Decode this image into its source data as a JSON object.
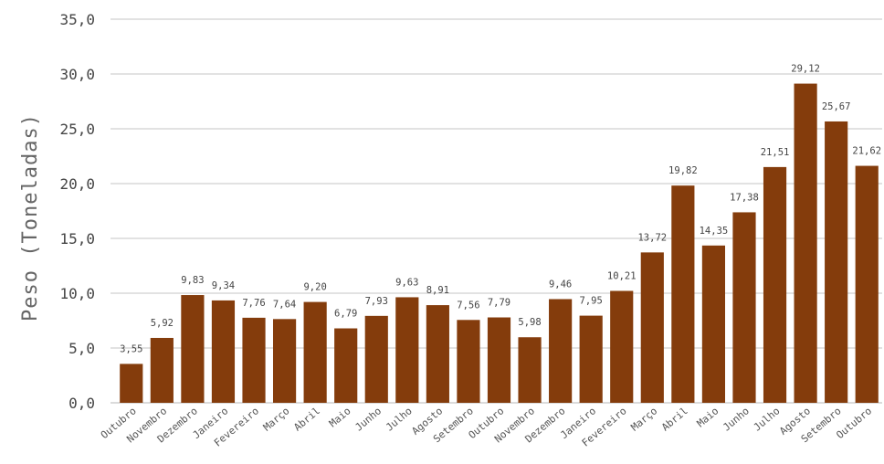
{
  "chart_data": {
    "type": "bar",
    "title": "",
    "xlabel": "",
    "ylabel": "Peso (Toneladas)",
    "ylim": [
      0,
      35
    ],
    "yticks": [
      0,
      5,
      10,
      15,
      20,
      25,
      30,
      35
    ],
    "ytick_labels": [
      "0,0",
      "5,0",
      "10,0",
      "15,0",
      "20,0",
      "25,0",
      "30,0",
      "35,0"
    ],
    "grid": true,
    "bar_color": "#843C0C",
    "categories": [
      "Outubro",
      "Novembro",
      "Dezembro",
      "Janeiro",
      "Fevereiro",
      "Março",
      "Abril",
      "Maio",
      "Junho",
      "Julho",
      "Agosto",
      "Setembro",
      "Outubro",
      "Novembro",
      "Dezembro",
      "Janeiro",
      "Fevereiro",
      "Março",
      "Abril",
      "Maio",
      "Junho",
      "Julho",
      "Agosto",
      "Setembro",
      "Outubro"
    ],
    "values": [
      3.55,
      5.92,
      9.83,
      9.34,
      7.76,
      7.64,
      9.2,
      6.79,
      7.93,
      9.63,
      8.91,
      7.56,
      7.79,
      5.98,
      9.46,
      7.95,
      10.21,
      13.72,
      19.82,
      14.35,
      17.38,
      21.51,
      29.12,
      25.67,
      21.62
    ],
    "value_labels": [
      "3,55",
      "5,92",
      "9,83",
      "9,34",
      "7,76",
      "7,64",
      "9,20",
      "6,79",
      "7,93",
      "9,63",
      "8,91",
      "7,56",
      "7,79",
      "5,98",
      "9,46",
      "7,95",
      "10,21",
      "13,72",
      "19,82",
      "14,35",
      "17,38",
      "21,51",
      "29,12",
      "25,67",
      "21,62"
    ]
  }
}
